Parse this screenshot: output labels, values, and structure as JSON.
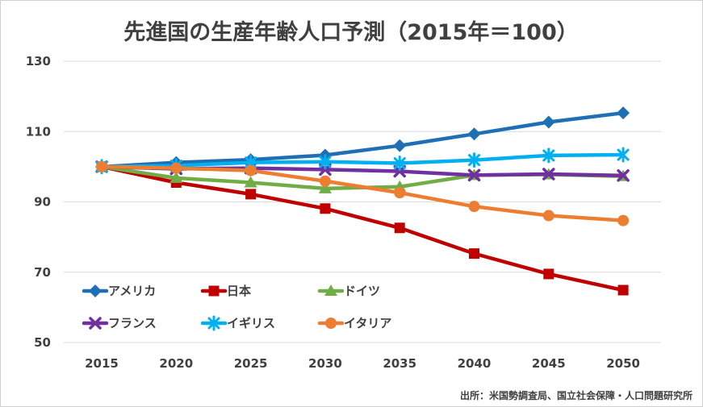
{
  "chart_data": {
    "type": "line",
    "title": "先進国の生産年齢人口予測（2015年＝100）",
    "xlabel": "",
    "ylabel": "",
    "ylim": [
      50,
      130
    ],
    "yticks": [
      50,
      70,
      90,
      110,
      130
    ],
    "categories": [
      "2015",
      "2020",
      "2025",
      "2030",
      "2035",
      "2040",
      "2045",
      "2050"
    ],
    "grid": true,
    "legend_position": "bottom-left-inside",
    "series": [
      {
        "name": "アメリカ",
        "color": "#1f6fb4",
        "marker": "diamond",
        "values": [
          100,
          101.2,
          102,
          103.3,
          106,
          109.3,
          112.7,
          115.3
        ]
      },
      {
        "name": "日本",
        "color": "#c00000",
        "marker": "square",
        "values": [
          100,
          95.5,
          92.2,
          88.1,
          82.6,
          75.3,
          69.5,
          64.9
        ]
      },
      {
        "name": "ドイツ",
        "color": "#70ad47",
        "marker": "triangle",
        "values": [
          100,
          96.8,
          95.5,
          93.8,
          94.3,
          97.6,
          97.8,
          97.3
        ]
      },
      {
        "name": "フランス",
        "color": "#7030a0",
        "marker": "x",
        "values": [
          100,
          99.4,
          99.6,
          99.2,
          98.7,
          97.6,
          97.9,
          97.5
        ]
      },
      {
        "name": "イギリス",
        "color": "#00b0f0",
        "marker": "star",
        "values": [
          100,
          100.3,
          101.2,
          101.4,
          101,
          101.9,
          103.2,
          103.4
        ]
      },
      {
        "name": "イタリア",
        "color": "#ed7d31",
        "marker": "circle",
        "values": [
          100,
          99.6,
          98.9,
          95.9,
          92.6,
          88.7,
          86.1,
          84.7
        ]
      }
    ],
    "source": "出所：米国勢調査局、国立社会保障・人口問題研究所"
  }
}
